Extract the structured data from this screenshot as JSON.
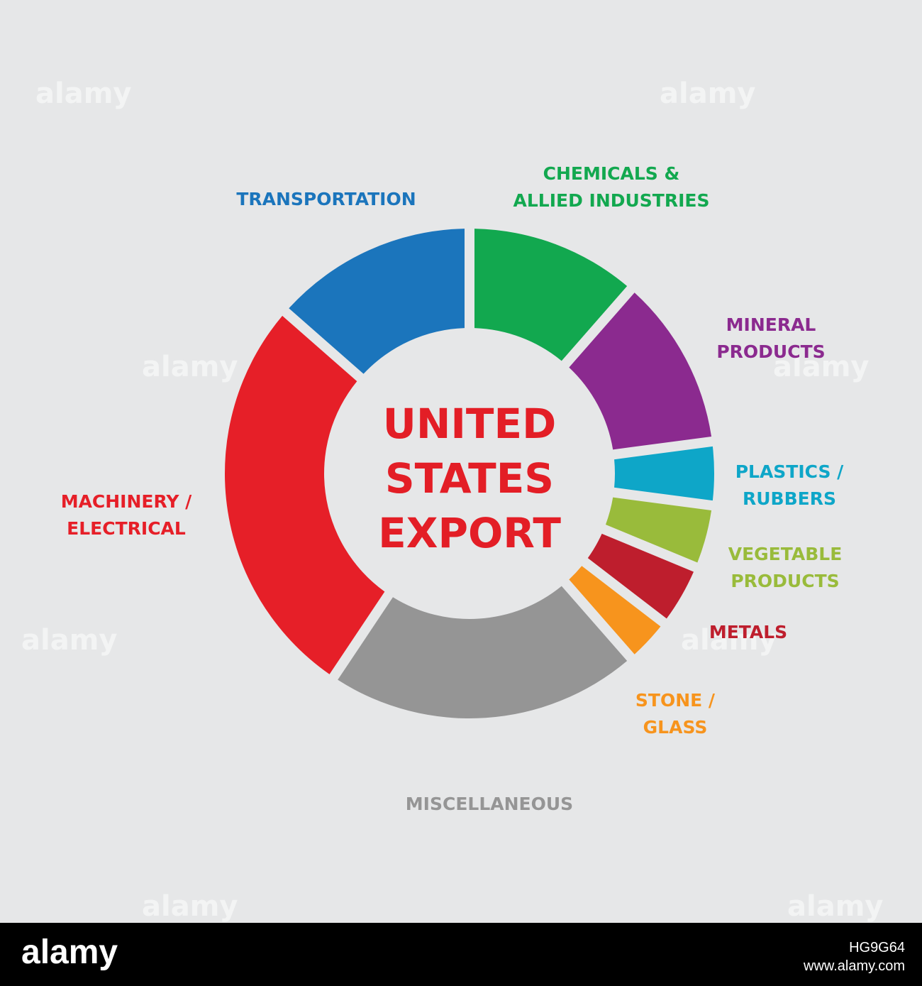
{
  "chart_data": {
    "type": "donut",
    "title": "UNITED STATES EXPORT",
    "title_lines": [
      "UNITED",
      "STATES",
      "EXPORT"
    ],
    "slices": [
      {
        "label": "CHEMICALS & ALLIED INDUSTRIES",
        "label_lines": [
          "CHEMICALS &",
          "ALLIED INDUSTRIES"
        ],
        "value": 11,
        "color": "#12a84f"
      },
      {
        "label": "MINERAL PRODUCTS",
        "label_lines": [
          "MINERAL",
          "PRODUCTS"
        ],
        "value": 11,
        "color": "#8b2a8f"
      },
      {
        "label": "PLASTICS / RUBBERS",
        "label_lines": [
          "PLASTICS /",
          "RUBBERS"
        ],
        "value": 4,
        "color": "#0ea6c8"
      },
      {
        "label": "VEGETABLE PRODUCTS",
        "label_lines": [
          "VEGETABLE",
          "PRODUCTS"
        ],
        "value": 4,
        "color": "#99bb3b"
      },
      {
        "label": "METALS",
        "label_lines": [
          "METALS"
        ],
        "value": 4,
        "color": "#be1e2d"
      },
      {
        "label": "STONE / GLASS",
        "label_lines": [
          "STONE /",
          "GLASS"
        ],
        "value": 3,
        "color": "#f7941d"
      },
      {
        "label": "MISCELLANEOUS",
        "label_lines": [
          "MISCELLANEOUS"
        ],
        "value": 20,
        "color": "#959595"
      },
      {
        "label": "MACHINERY / ELECTRICAL",
        "label_lines": [
          "MACHINERY /",
          "ELECTRICAL"
        ],
        "value": 26,
        "color": "#e61f28"
      },
      {
        "label": "TRANSPORTATION",
        "label_lines": [
          "TRANSPORTATION"
        ],
        "value": 13,
        "color": "#1b75bc"
      }
    ],
    "label_colors": {
      "CHEMICALS & ALLIED INDUSTRIES": "#12a84f",
      "MINERAL PRODUCTS": "#8b2a8f",
      "PLASTICS / RUBBERS": "#0ea6c8",
      "VEGETABLE PRODUCTS": "#99bb3b",
      "METALS": "#be1e2d",
      "STONE / GLASS": "#f7941d",
      "MISCELLANEOUS": "#959595",
      "MACHINERY / ELECTRICAL": "#e61f28",
      "TRANSPORTATION": "#1b75bc"
    }
  },
  "watermark": {
    "brand": "alamy",
    "image_id": "HG9G64",
    "site": "www.alamy.com"
  }
}
